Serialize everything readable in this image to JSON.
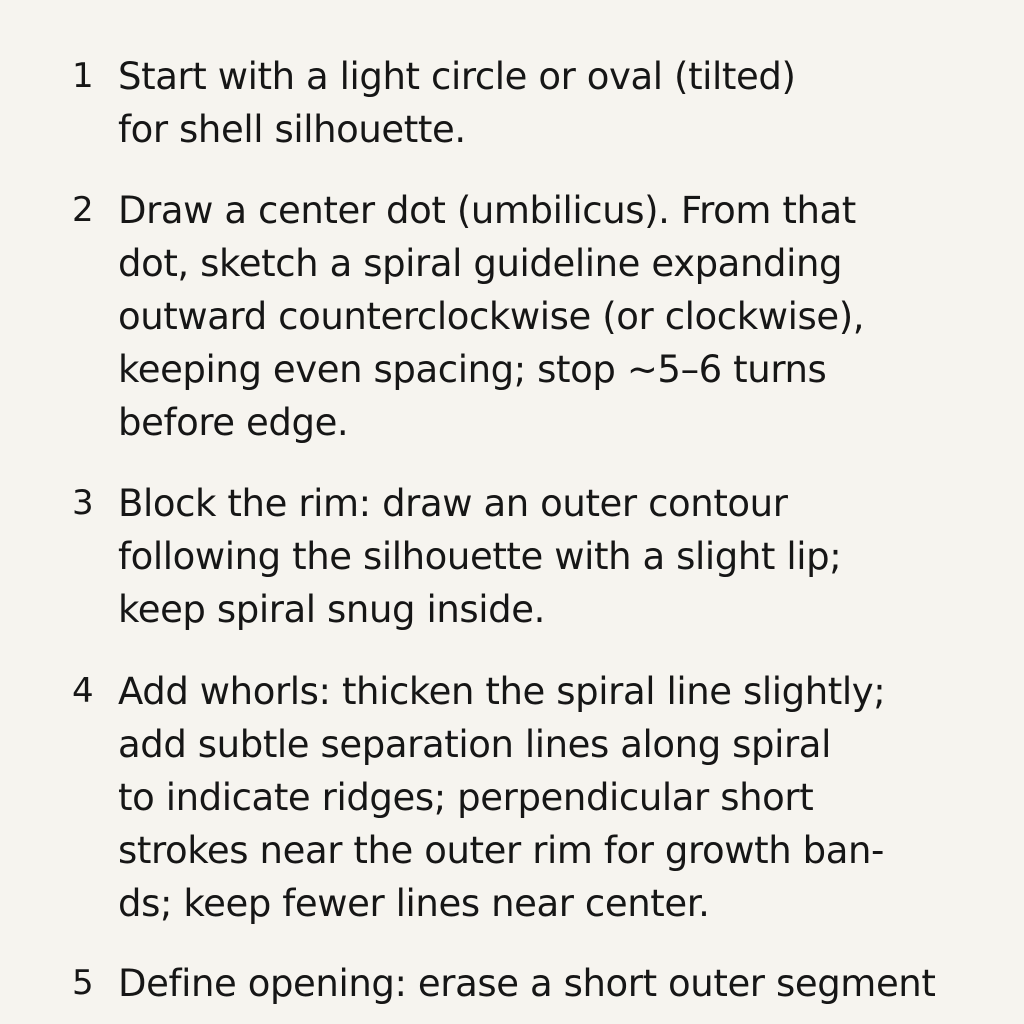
{
  "steps": [
    {
      "number": "1",
      "lines": [
        "Start with a light circle or oval (tilted)",
        "for shell silhouette."
      ]
    },
    {
      "number": "2",
      "lines": [
        "Draw a center dot (umbilicus). From that",
        "dot, sketch a spiral guideline expanding",
        "outward counterclockwise (or clockwise),",
        "keeping even spacing; stop ~5–6 turns",
        "before edge."
      ]
    },
    {
      "number": "3",
      "lines": [
        "Block the rim: draw an outer contour",
        "following the silhouette with a slight lip;",
        "keep spiral snug inside."
      ]
    },
    {
      "number": "4",
      "lines": [
        "Add whorls: thicken the spiral line slightly;",
        "add subtle separation lines along spiral",
        "to indicate ridges; perpendicular short",
        "strokes near the outer rim for growth ban-",
        "ds; keep fewer lines near center."
      ]
    },
    {
      "number": "5",
      "lines": [
        "Define opening: erase a short outer segment"
      ]
    }
  ]
}
